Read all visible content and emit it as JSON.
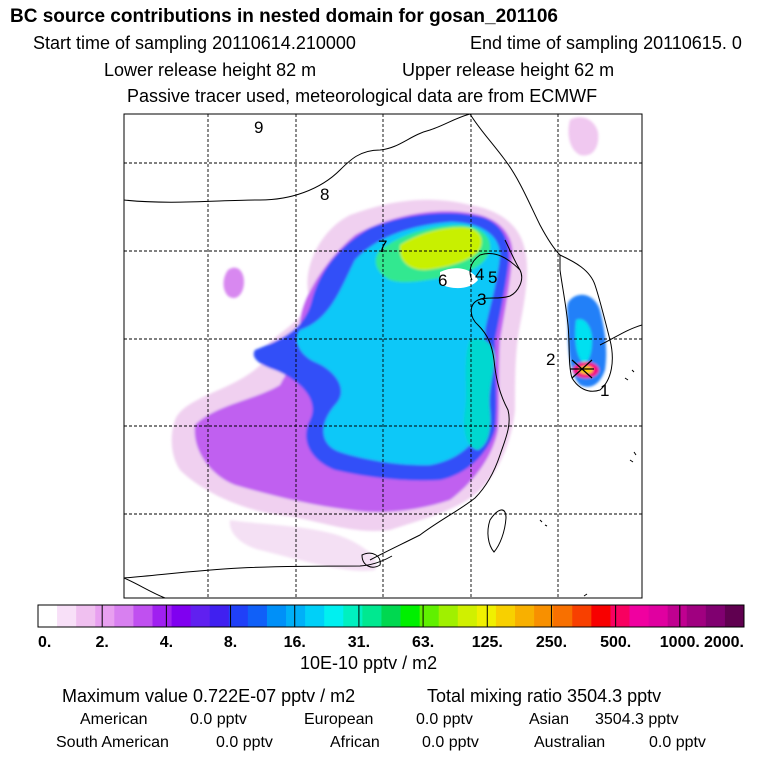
{
  "header": {
    "title": "BC  source contributions in nested domain for gosan_201106",
    "start_label": "Start time of sampling 20110614.210000",
    "end_label": "End time of sampling 20110615.     0",
    "lower_label": "Lower release height   82 m",
    "upper_label": "Upper release height   62 m",
    "tracer_note": "Passive tracer used, meteorological data are from ECMWF"
  },
  "chart_data": {
    "type": "heatmap",
    "title": "BC  source contributions in nested domain for gosan_201106",
    "colorbar": {
      "ticks": [
        "0.",
        "2.",
        "4.",
        "8.",
        "16.",
        "31.",
        "63.",
        "125.",
        "250.",
        "500.",
        "1000.",
        "2000."
      ],
      "unit": "10E-10 pptv / m2",
      "colors": [
        "#ffffff",
        "#f8e0f8",
        "#f0c0f0",
        "#e8a0f0",
        "#d880f0",
        "#c050f0",
        "#a020f0",
        "#8000f0",
        "#6020f0",
        "#4020f0",
        "#2040f8",
        "#1060f8",
        "#0090f8",
        "#00b0f8",
        "#00d0f8",
        "#00f0f0",
        "#00f0c0",
        "#00e890",
        "#00d850",
        "#00f000",
        "#60f000",
        "#a0f000",
        "#d0f000",
        "#f0f000",
        "#f8d000",
        "#f8b000",
        "#f89000",
        "#f87000",
        "#f84000",
        "#f80000",
        "#f80060",
        "#f000a0",
        "#e000a0",
        "#c00090",
        "#a00080",
        "#800070",
        "#600050"
      ]
    },
    "markers": [
      "1",
      "2",
      "3",
      "4",
      "5",
      "6",
      "7",
      "8",
      "9"
    ],
    "grid": true
  },
  "stats": {
    "max_value": "Maximum value  0.722E-07 pptv / m2",
    "total_mixing": "Total mixing ratio     3504.3 pptv",
    "regions": [
      {
        "name": "American",
        "value": "0.0 pptv"
      },
      {
        "name": "European",
        "value": "0.0 pptv"
      },
      {
        "name": "Asian",
        "value": "3504.3 pptv"
      },
      {
        "name": "South American",
        "value": "0.0 pptv"
      },
      {
        "name": "African",
        "value": "0.0 pptv"
      },
      {
        "name": "Australian",
        "value": "0.0 pptv"
      }
    ]
  }
}
